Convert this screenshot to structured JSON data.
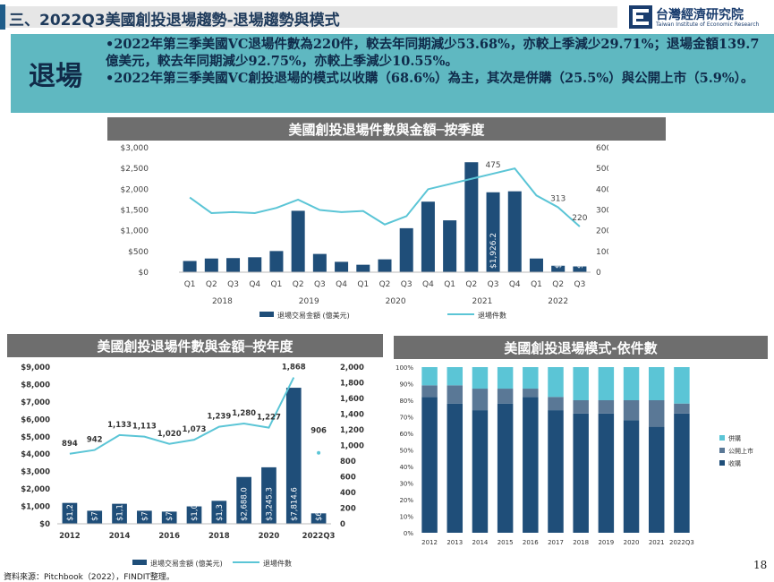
{
  "header": {
    "title": "三、2022Q3美國創投退場趨勢-退場趨勢與模式",
    "logo_text": "台灣經濟研究院",
    "logo_subtext": "Taiwan Institute of Economic Research"
  },
  "summary": {
    "label": "退場",
    "bullets": [
      "•2022年第三季美國VC退場件數為220件，較去年同期減少53.68%，亦較上季減少29.71%；退場金額139.7億美元，較去年同期減少92.75%，亦較上季減少10.55%。",
      "•2022年第三季美國VC創投退場的模式以收購（68.6%）為主，其次是併購（25.5%）與公開上市（5.9%）。"
    ]
  },
  "colors": {
    "bar": "#1f4e79",
    "line": "#5bc5d6",
    "stack_acquisition": "#1f4e79",
    "stack_ipo": "#5a7896",
    "stack_merger": "#5bc5d6",
    "banner": "#6e6e6e",
    "summary_bg": "#5fb8c1"
  },
  "charts": {
    "quarterly_title": "美國創投退場件數與金額─按季度",
    "annual_title": "美國創投退場件數與金額─按年度",
    "mode_title": "美國創投退場模式-依件數"
  },
  "chart_data": [
    {
      "type": "bar",
      "id": "quarterly",
      "categories": [
        "Q1",
        "Q2",
        "Q3",
        "Q4",
        "Q1",
        "Q2",
        "Q3",
        "Q4",
        "Q1",
        "Q2",
        "Q3",
        "Q4",
        "Q1",
        "Q2",
        "Q3",
        "Q4",
        "Q1",
        "Q2",
        "Q3"
      ],
      "year_groups": [
        {
          "label": "2018",
          "from": 0,
          "to": 3
        },
        {
          "label": "2019",
          "from": 4,
          "to": 7
        },
        {
          "label": "2020",
          "from": 8,
          "to": 11
        },
        {
          "label": "2021",
          "from": 12,
          "to": 15
        },
        {
          "label": "2022",
          "from": 16,
          "to": 18
        }
      ],
      "series": [
        {
          "name": "退場交易金額 (億美元)",
          "kind": "bar",
          "axis": "left",
          "values": [
            270,
            330,
            340,
            360,
            510,
            1480,
            440,
            250,
            180,
            310,
            1060,
            1700,
            1250,
            2650,
            1926.2,
            1950,
            330,
            156.1,
            139.7
          ]
        },
        {
          "name": "退場件數",
          "kind": "line",
          "axis": "right",
          "values": [
            360,
            285,
            290,
            285,
            310,
            350,
            300,
            290,
            295,
            230,
            270,
            400,
            425,
            450,
            475,
            500,
            370,
            313,
            220
          ]
        }
      ],
      "bar_labels": [
        {
          "index": 14,
          "text": "$1,926.2"
        },
        {
          "index": 17,
          "text": "$156.1"
        },
        {
          "index": 18,
          "text": "$139.7"
        }
      ],
      "line_labels": [
        {
          "index": 14,
          "text": "475"
        },
        {
          "index": 17,
          "text": "313"
        },
        {
          "index": 18,
          "text": "220"
        }
      ],
      "ylim_left": [
        0,
        3000
      ],
      "ylim_right": [
        0,
        600
      ],
      "left_ticks": [
        "$0",
        "$500",
        "$1,000",
        "$1,500",
        "$2,000",
        "$2,500",
        "$3,000"
      ],
      "right_ticks": [
        "0",
        "100",
        "200",
        "300",
        "400",
        "500",
        "600"
      ],
      "legend": [
        "退場交易金額 (億美元)",
        "退場件數"
      ]
    },
    {
      "type": "bar",
      "id": "annual",
      "categories": [
        "2012",
        "2013",
        "2014",
        "2015",
        "2016",
        "2017",
        "2018",
        "2019",
        "2020",
        "2021",
        "2022Q3"
      ],
      "x_tick_labels": [
        "2012",
        "",
        "2014",
        "",
        "2016",
        "",
        "2018",
        "",
        "2020",
        "",
        "2022Q3"
      ],
      "series": [
        {
          "name": "退場交易金額 (億美元)",
          "kind": "bar",
          "axis": "left",
          "values": [
            1200,
            750,
            1150,
            750,
            700,
            1000,
            1320,
            2688.0,
            3245.3,
            7814.6,
            600
          ]
        },
        {
          "name": "退場件數",
          "kind": "line",
          "axis": "right",
          "values": [
            894,
            942,
            1133,
            1113,
            1020,
            1073,
            1239,
            1280,
            1227,
            1868,
            906
          ]
        }
      ],
      "bar_labels": [
        "$1,2",
        "$7",
        "$1,1",
        "$7",
        "$7",
        "$1,0",
        "$1,3",
        "$2,688.0",
        "$3,245.3",
        "$7,814.6",
        "$6"
      ],
      "line_labels": [
        "894",
        "942",
        "1,133",
        "1,113",
        "1,020",
        "1,073",
        "1,239",
        "1,280",
        "1,227",
        "1,868",
        "906"
      ],
      "line_connected_until": 9,
      "ylim_left": [
        0,
        9000
      ],
      "ylim_right": [
        0,
        2000
      ],
      "left_ticks": [
        "$0",
        "$1,000",
        "$2,000",
        "$3,000",
        "$4,000",
        "$5,000",
        "$6,000",
        "$7,000",
        "$8,000",
        "$9,000"
      ],
      "right_ticks": [
        "0",
        "200",
        "400",
        "600",
        "800",
        "1,000",
        "1,200",
        "1,400",
        "1,600",
        "1,800",
        "2,000"
      ],
      "legend": [
        "退場交易金額 (億美元)",
        "退場件數"
      ]
    },
    {
      "type": "bar",
      "stacked": true,
      "percent": true,
      "id": "mode",
      "categories": [
        "2012",
        "2013",
        "2014",
        "2015",
        "2016",
        "2017",
        "2018",
        "2019",
        "2020",
        "2021",
        "2022Q3"
      ],
      "series": [
        {
          "name": "收購",
          "values": [
            82,
            78,
            74,
            78,
            82,
            74,
            72,
            72,
            68,
            64,
            72
          ]
        },
        {
          "name": "公開上市",
          "values": [
            7,
            11,
            13,
            9,
            5,
            8,
            8,
            8,
            12,
            16,
            6
          ]
        },
        {
          "name": "併購",
          "values": [
            11,
            11,
            13,
            13,
            13,
            18,
            20,
            20,
            20,
            20,
            22
          ]
        }
      ],
      "ylim": [
        0,
        100
      ],
      "y_ticks": [
        "0%",
        "10%",
        "20%",
        "30%",
        "40%",
        "50%",
        "60%",
        "70%",
        "80%",
        "90%",
        "100%"
      ],
      "legend": [
        "併購",
        "公開上市",
        "收購"
      ]
    }
  ],
  "footer": {
    "source": "資料來源：Pitchbook（2022），FINDIT整理。",
    "page_number": "18"
  }
}
